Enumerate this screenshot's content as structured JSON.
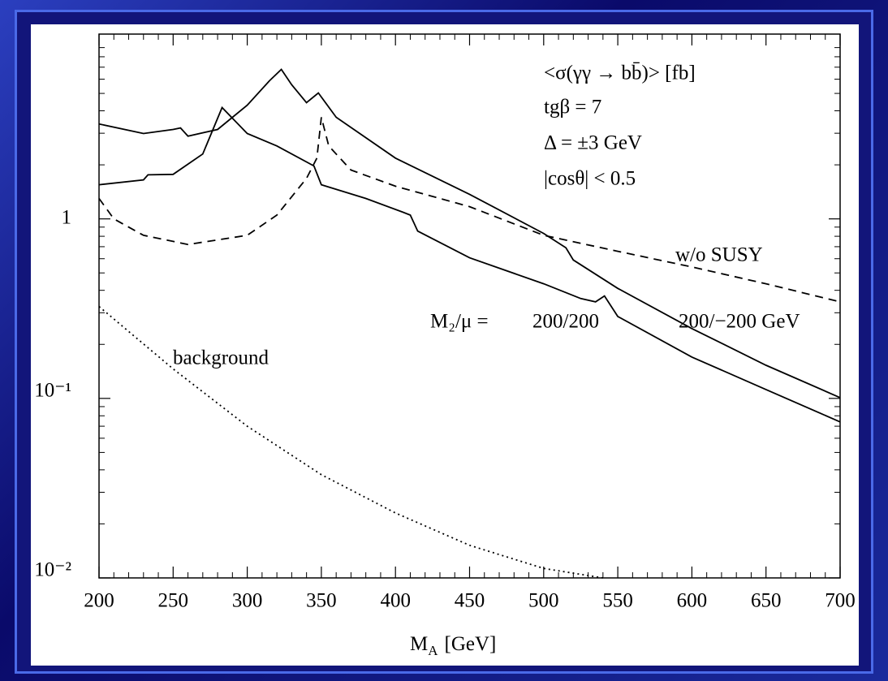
{
  "chart_data": {
    "type": "line",
    "xlabel": "M",
    "xlabel_sub": "A",
    "xlabel_unit": "[GeV]",
    "annotations": [
      "<σ(γγ → bb̄)> [fb]",
      "tgβ = 7",
      "Δ = ±3 GeV",
      "|cosθ| < 0.5",
      "w/o SUSY",
      "M₂/μ =",
      "200/200",
      "200/−200 GeV",
      "background"
    ],
    "xlim": [
      200,
      700
    ],
    "xticks": [
      200,
      250,
      300,
      350,
      400,
      450,
      500,
      550,
      600,
      650,
      700
    ],
    "ylim": [
      0.01,
      10.7
    ],
    "log_y": true,
    "yticks": [
      {
        "value": 0.01,
        "label": "10⁻²"
      },
      {
        "value": 0.1,
        "label": "10⁻¹"
      },
      1
    ],
    "series": [
      {
        "style": "solid",
        "color": "#000000",
        "x": [
          200,
          230,
          250,
          255,
          260,
          280,
          300,
          315,
          323,
          330,
          340,
          348,
          360,
          400,
          450,
          500,
          515,
          520,
          550,
          600,
          650,
          700
        ],
        "values": [
          3.38,
          2.99,
          3.15,
          3.21,
          2.89,
          3.15,
          4.3,
          5.88,
          6.8,
          5.58,
          4.44,
          5.03,
          3.68,
          2.18,
          1.37,
          0.83,
          0.69,
          0.59,
          0.41,
          0.245,
          0.153,
          0.101
        ]
      },
      {
        "style": "solid",
        "color": "#000000",
        "x": [
          200,
          230,
          233,
          250,
          270,
          283,
          300,
          320,
          345,
          350,
          380,
          405,
          410,
          415,
          450,
          500,
          525,
          535,
          541,
          550,
          600,
          650,
          700
        ],
        "values": [
          1.55,
          1.65,
          1.76,
          1.77,
          2.3,
          4.17,
          2.99,
          2.55,
          1.97,
          1.55,
          1.3,
          1.09,
          1.05,
          0.855,
          0.607,
          0.435,
          0.36,
          0.345,
          0.372,
          0.286,
          0.17,
          0.112,
          0.074
        ]
      },
      {
        "style": "dashed",
        "color": "#000000",
        "x": [
          200,
          210,
          230,
          260,
          300,
          320,
          340,
          347,
          350,
          355,
          370,
          400,
          450,
          500,
          550,
          600,
          650,
          700
        ],
        "values": [
          1.3,
          1.0,
          0.81,
          0.72,
          0.81,
          1.05,
          1.68,
          2.18,
          3.68,
          2.55,
          1.87,
          1.52,
          1.17,
          0.81,
          0.66,
          0.54,
          0.435,
          0.345
        ]
      },
      {
        "style": "dotted",
        "color": "#000000",
        "x": [
          200,
          250,
          300,
          350,
          400,
          450,
          500,
          540
        ],
        "values": [
          0.325,
          0.146,
          0.07,
          0.0376,
          0.023,
          0.0152,
          0.0113,
          0.01
        ]
      }
    ]
  }
}
